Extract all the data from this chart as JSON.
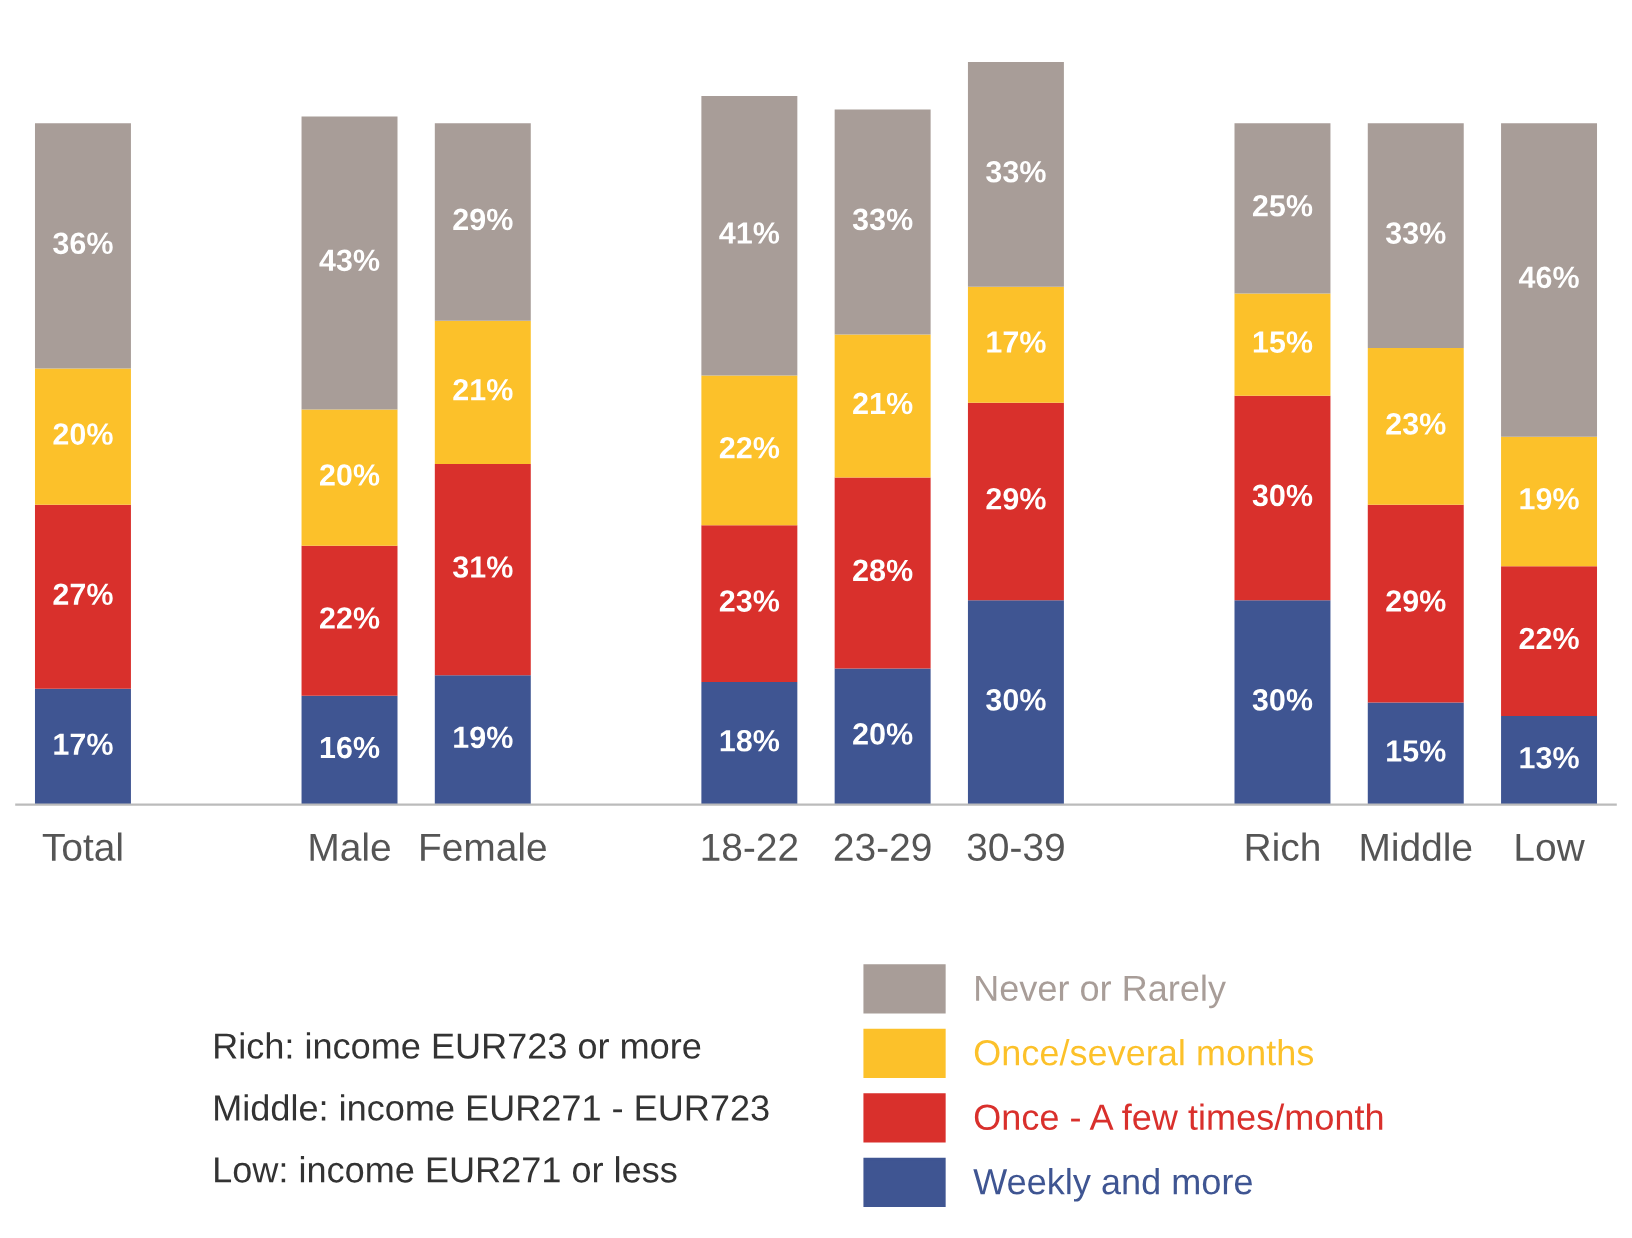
{
  "chart_data": {
    "type": "bar",
    "stacked": true,
    "legend": "bottom",
    "grid": false,
    "categories": [
      "Total",
      null,
      "Male",
      "Female",
      null,
      "18-22",
      "23-29",
      "30-39",
      null,
      "Rich",
      "Middle",
      "Low"
    ],
    "series": [
      {
        "name": "Weekly and more",
        "color": "#3f5592",
        "values": [
          17,
          null,
          16,
          19,
          null,
          18,
          20,
          30,
          null,
          30,
          15,
          13
        ],
        "value_labels": [
          "17%",
          null,
          "16%",
          "19%",
          null,
          "18%",
          "20%",
          "30%",
          null,
          "30%",
          "15%",
          "13%"
        ]
      },
      {
        "name": "Once - A few times/month",
        "color": "#d9302c",
        "values": [
          27,
          null,
          22,
          31,
          null,
          23,
          28,
          29,
          null,
          30,
          29,
          22
        ],
        "value_labels": [
          "27%",
          null,
          "22%",
          "31%",
          null,
          "23%",
          "28%",
          "29%",
          null,
          "30%",
          "29%",
          "22%"
        ]
      },
      {
        "name": "Once/several months",
        "color": "#fcc12a",
        "values": [
          20,
          null,
          20,
          21,
          null,
          22,
          21,
          17,
          null,
          15,
          23,
          19
        ],
        "value_labels": [
          "20%",
          null,
          "20%",
          "21%",
          null,
          "22%",
          "21%",
          "17%",
          null,
          "15%",
          "23%",
          "19%"
        ]
      },
      {
        "name": "Never or Rarely",
        "color": "#a89d98",
        "values": [
          36,
          null,
          43,
          29,
          null,
          41,
          33,
          33,
          null,
          25,
          33,
          46
        ],
        "value_labels": [
          "36%",
          null,
          "43%",
          "29%",
          null,
          "41%",
          "33%",
          "33%",
          null,
          "25%",
          "33%",
          "46%"
        ]
      }
    ],
    "annotations": [
      "Rich: income EUR723 or more",
      "Middle: income EUR271 - EUR723",
      "Low: income EUR271 or less"
    ]
  }
}
